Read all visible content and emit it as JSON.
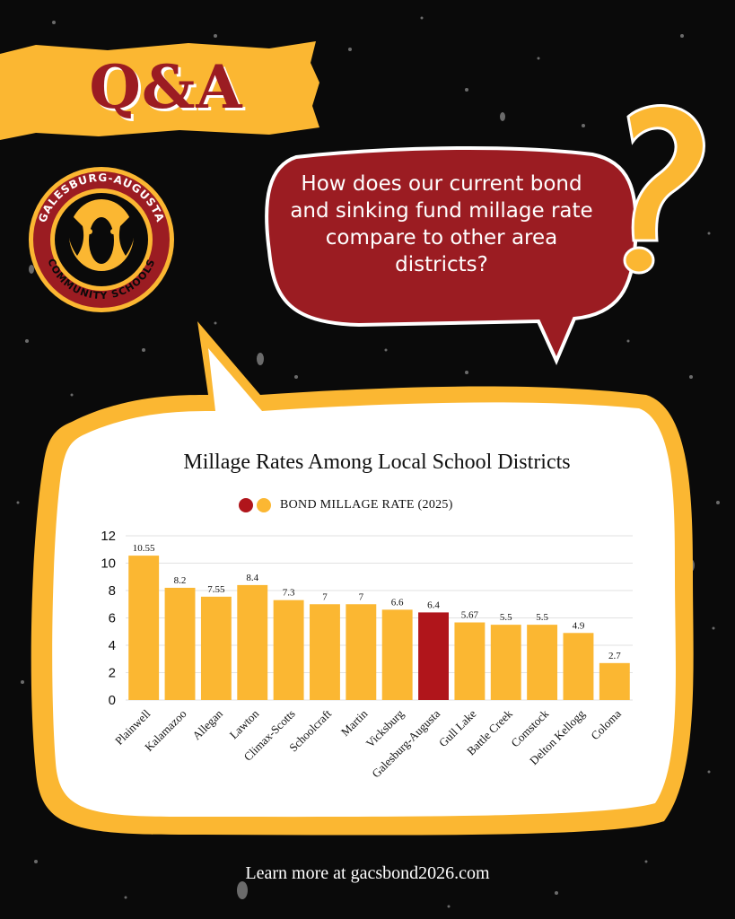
{
  "header": {
    "badge": "Q&A"
  },
  "logo": {
    "top_text": "GALESBURG-AUGUSTA",
    "bottom_text": "COMMUNITY SCHOOLS"
  },
  "question": "How does our current bond and sinking fund millage rate compare to other area districts?",
  "footer": "Learn more at gacsbond2026.com",
  "colors": {
    "accent_yellow": "#fbb732",
    "highlight_red": "#b0151b",
    "bubble_red": "#9b1c22"
  },
  "chart_data": {
    "type": "bar",
    "title": "Millage Rates Among Local School Districts",
    "legend": "BOND MILLAGE RATE (2025)",
    "categories": [
      "Plainwell",
      "Kalamazoo",
      "Allegan",
      "Lawton",
      "Climax-Scotts",
      "Schoolcraft",
      "Martin",
      "Vicksburg",
      "Galesburg-Augusta",
      "Gull Lake",
      "Battle Creek",
      "Comstock",
      "Delton Kellogg",
      "Coloma"
    ],
    "values": [
      10.55,
      8.2,
      7.55,
      8.4,
      7.3,
      7,
      7,
      6.6,
      6.4,
      5.67,
      5.5,
      5.5,
      4.9,
      2.7
    ],
    "labels": [
      "10.55",
      "8.2",
      "7.55",
      "8.4",
      "7.3",
      "7",
      "7",
      "6.6",
      "6.4",
      "5.67",
      "5.5",
      "5.5",
      "4.9",
      "2.7"
    ],
    "highlight": "Galesburg-Augusta",
    "yticks": [
      "0",
      "2",
      "4",
      "6",
      "8",
      "10",
      "12"
    ],
    "ylim": [
      0,
      12
    ],
    "grid": true,
    "legend_position": "top-center"
  }
}
